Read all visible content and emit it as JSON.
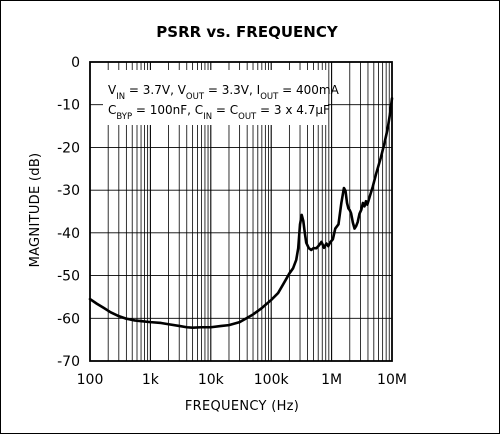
{
  "chart_data": {
    "type": "line",
    "title": "PSRR vs. FREQUENCY",
    "xlabel": "FREQUENCY (Hz)",
    "ylabel": "MAGNITUDE (dB)",
    "x_scale": "log",
    "xlim": [
      100,
      10000000
    ],
    "ylim": [
      -70,
      0
    ],
    "grid": true,
    "x_ticks": [
      100,
      1000,
      10000,
      100000,
      1000000,
      10000000
    ],
    "x_tick_labels": [
      "100",
      "1k",
      "10k",
      "100k",
      "1M",
      "10M"
    ],
    "y_ticks": [
      0,
      -10,
      -20,
      -30,
      -40,
      -50,
      -60,
      -70
    ],
    "y_tick_labels": [
      "0",
      "-10",
      "-20",
      "-30",
      "-40",
      "-50",
      "-60",
      "-70"
    ],
    "annotation": {
      "line1": [
        {
          "t": "V",
          "s": "IN"
        },
        {
          "t": " = 3.7V, V",
          "s": "OUT"
        },
        {
          "t": " = 3.3V, I",
          "s": "OUT"
        },
        {
          "t": " = 400mA",
          "s": ""
        }
      ],
      "line2": [
        {
          "t": "C",
          "s": "BYP"
        },
        {
          "t": " = 100nF, C",
          "s": "IN"
        },
        {
          "t": " = C",
          "s": "OUT"
        },
        {
          "t": " = 3 x 4.7µF",
          "s": ""
        }
      ]
    },
    "series": [
      {
        "color": "#000000",
        "x": [
          100,
          130,
          170,
          220,
          300,
          400,
          550,
          750,
          1000,
          1500,
          2000,
          3000,
          4000,
          5000,
          7000,
          10000,
          15000,
          20000,
          30000,
          40000,
          50000,
          70000,
          100000,
          130000,
          160000,
          200000,
          230000,
          260000,
          280000,
          300000,
          320000,
          340000,
          360000,
          380000,
          420000,
          460000,
          500000,
          560000,
          620000,
          680000,
          750000,
          820000,
          880000,
          950000,
          1050000,
          1150000,
          1300000,
          1450000,
          1600000,
          1700000,
          1800000,
          1900000,
          2000000,
          2100000,
          2250000,
          2400000,
          2550000,
          2700000,
          2900000,
          3100000,
          3300000,
          3500000,
          3700000,
          3900000,
          4300000,
          4800000,
          5500000,
          6500000,
          7500000,
          8500000,
          9300000,
          10000000
        ],
        "y": [
          -55.5,
          -56.6,
          -57.6,
          -58.6,
          -59.5,
          -60.1,
          -60.5,
          -60.7,
          -60.9,
          -61.1,
          -61.4,
          -61.8,
          -62.1,
          -62.2,
          -62.1,
          -62.1,
          -61.8,
          -61.6,
          -60.9,
          -59.9,
          -59.1,
          -57.6,
          -55.7,
          -54.1,
          -51.9,
          -49.5,
          -48.3,
          -46.3,
          -43.6,
          -38.0,
          -35.8,
          -37.2,
          -40.0,
          -42.3,
          -43.6,
          -44.0,
          -43.6,
          -43.6,
          -42.9,
          -42.1,
          -43.5,
          -42.5,
          -43.1,
          -42.2,
          -41.5,
          -39.0,
          -38.0,
          -33.0,
          -29.5,
          -30.2,
          -33.0,
          -34.3,
          -34.7,
          -35.4,
          -37.6,
          -39.0,
          -38.4,
          -37.5,
          -35.5,
          -34.6,
          -33.0,
          -33.8,
          -32.6,
          -33.4,
          -31.4,
          -29.2,
          -26.0,
          -22.5,
          -19.0,
          -15.5,
          -12.0,
          -8.5
        ]
      }
    ]
  }
}
